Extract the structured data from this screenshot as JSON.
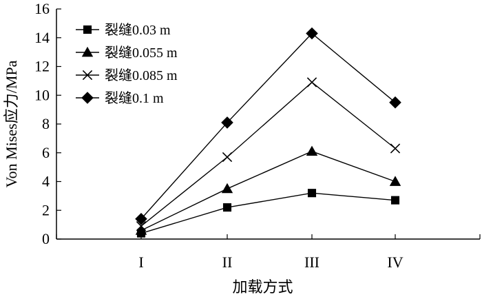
{
  "chart_data": {
    "type": "line",
    "title": "",
    "xlabel": "加载方式",
    "ylabel": "Von Mises应力/MPa",
    "categories": [
      "I",
      "II",
      "III",
      "IV"
    ],
    "ylim": [
      0,
      16
    ],
    "yticks": [
      0,
      2,
      4,
      6,
      8,
      10,
      12,
      14,
      16
    ],
    "grid": false,
    "legend_position": "top-left",
    "series": [
      {
        "name": "裂缝0.03 m",
        "marker": "square",
        "color": "#000000",
        "values": [
          0.4,
          2.2,
          3.2,
          2.7
        ]
      },
      {
        "name": "裂缝0.055 m",
        "marker": "triangle",
        "color": "#000000",
        "values": [
          0.6,
          3.5,
          6.1,
          4.0
        ]
      },
      {
        "name": "裂缝0.085 m",
        "marker": "cross",
        "color": "#000000",
        "values": [
          0.9,
          5.7,
          10.9,
          6.3
        ]
      },
      {
        "name": "裂缝0.1 m",
        "marker": "diamond",
        "color": "#000000",
        "values": [
          1.4,
          8.1,
          14.3,
          9.5
        ]
      }
    ]
  }
}
